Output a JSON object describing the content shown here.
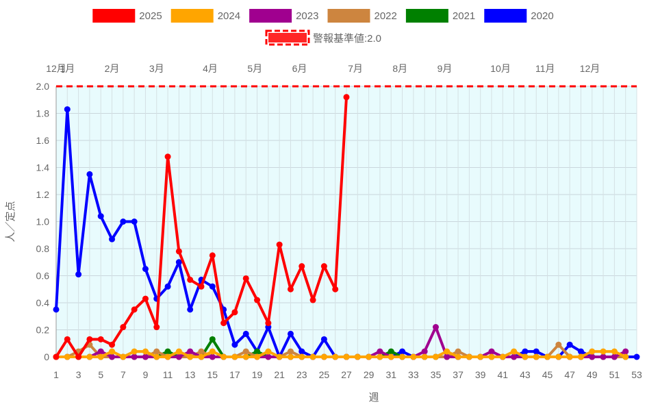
{
  "chart_data": {
    "type": "line",
    "xlabel": "週",
    "ylabel": "人／定点",
    "ylim": [
      0,
      2.0
    ],
    "yticks": [
      "0",
      "0.2",
      "0.4",
      "0.6",
      "0.8",
      "1.0",
      "1.2",
      "1.4",
      "1.6",
      "1.8",
      "2.0"
    ],
    "xrange": [
      1,
      53
    ],
    "xticks": [
      "1",
      "3",
      "5",
      "7",
      "9",
      "11",
      "13",
      "15",
      "17",
      "19",
      "21",
      "23",
      "25",
      "27",
      "29",
      "31",
      "33",
      "35",
      "37",
      "39",
      "41",
      "43",
      "45",
      "47",
      "49",
      "51",
      "53"
    ],
    "months": [
      {
        "label": "12月",
        "week": 1
      },
      {
        "label": "1月",
        "week": 2
      },
      {
        "label": "2月",
        "week": 6
      },
      {
        "label": "3月",
        "week": 10
      },
      {
        "label": "4月",
        "week": 14.8
      },
      {
        "label": "5月",
        "week": 18.8
      },
      {
        "label": "6月",
        "week": 22.8
      },
      {
        "label": "7月",
        "week": 27.8
      },
      {
        "label": "8月",
        "week": 31.8
      },
      {
        "label": "9月",
        "week": 35.8
      },
      {
        "label": "10月",
        "week": 40.8
      },
      {
        "label": "11月",
        "week": 44.8
      },
      {
        "label": "12月",
        "week": 48.8
      }
    ],
    "threshold": {
      "name": "警報基準値:2.0",
      "value": 2.0,
      "color": "#ff0000"
    },
    "grid": true,
    "plot_background": "#e8fbfd",
    "legend_position": "top",
    "series": [
      {
        "name": "2020",
        "color": "#0000ff",
        "x": [
          1,
          2,
          3,
          4,
          5,
          6,
          7,
          8,
          9,
          10,
          11,
          12,
          13,
          14,
          15,
          16,
          17,
          18,
          19,
          20,
          21,
          22,
          23,
          24,
          25,
          26,
          27,
          28,
          29,
          30,
          31,
          32,
          33,
          34,
          35,
          36,
          37,
          38,
          39,
          40,
          41,
          42,
          43,
          44,
          45,
          46,
          47,
          48,
          49,
          50,
          51,
          52,
          53
        ],
        "values": [
          0.35,
          1.83,
          0.61,
          1.35,
          1.04,
          0.87,
          1.0,
          1.0,
          0.65,
          0.43,
          0.52,
          0.7,
          0.35,
          0.57,
          0.52,
          0.35,
          0.09,
          0.17,
          0.04,
          0.22,
          0.0,
          0.17,
          0.04,
          0.0,
          0.13,
          0.0,
          0.0,
          0.0,
          0.0,
          0.0,
          0.0,
          0.04,
          0.0,
          0.0,
          0.0,
          0.0,
          0.0,
          0.0,
          0.0,
          0.0,
          0.0,
          0.0,
          0.04,
          0.04,
          0.0,
          0.0,
          0.09,
          0.04,
          0.0,
          0.0,
          0.0,
          0.0,
          0.0
        ]
      },
      {
        "name": "2021",
        "color": "#008000",
        "x": [
          1,
          2,
          3,
          4,
          5,
          6,
          7,
          8,
          9,
          10,
          11,
          12,
          13,
          14,
          15,
          16,
          17,
          18,
          19,
          20,
          21,
          22,
          23,
          24,
          25,
          26,
          27,
          28,
          29,
          30,
          31,
          32,
          33,
          34,
          35,
          36,
          37,
          38,
          39,
          40,
          41,
          42,
          43,
          44,
          45,
          46,
          47,
          48,
          49,
          50,
          51,
          52
        ],
        "values": [
          0.0,
          0.0,
          0.0,
          0.0,
          0.0,
          0.0,
          0.0,
          0.0,
          0.0,
          0.0,
          0.04,
          0.0,
          0.0,
          0.0,
          0.13,
          0.0,
          0.0,
          0.0,
          0.04,
          0.0,
          0.0,
          0.0,
          0.0,
          0.0,
          0.0,
          0.0,
          0.0,
          0.0,
          0.0,
          0.0,
          0.04,
          0.0,
          0.0,
          0.0,
          0.0,
          0.0,
          0.0,
          0.0,
          0.0,
          0.0,
          0.0,
          0.0,
          0.0,
          0.0,
          0.0,
          0.0,
          0.0,
          0.0,
          0.0,
          0.0,
          0.0,
          0.0
        ]
      },
      {
        "name": "2022",
        "color": "#cd853f",
        "x": [
          1,
          2,
          3,
          4,
          5,
          6,
          7,
          8,
          9,
          10,
          11,
          12,
          13,
          14,
          15,
          16,
          17,
          18,
          19,
          20,
          21,
          22,
          23,
          24,
          25,
          26,
          27,
          28,
          29,
          30,
          31,
          32,
          33,
          34,
          35,
          36,
          37,
          38,
          39,
          40,
          41,
          42,
          43,
          44,
          45,
          46,
          47,
          48,
          49,
          50,
          51,
          52
        ],
        "values": [
          0.0,
          0.0,
          0.04,
          0.09,
          0.0,
          0.0,
          0.0,
          0.0,
          0.0,
          0.04,
          0.0,
          0.0,
          0.0,
          0.04,
          0.0,
          0.0,
          0.0,
          0.04,
          0.0,
          0.0,
          0.0,
          0.04,
          0.0,
          0.0,
          0.0,
          0.0,
          0.0,
          0.0,
          0.0,
          0.0,
          0.0,
          0.0,
          0.0,
          0.0,
          0.0,
          0.0,
          0.04,
          0.0,
          0.0,
          0.0,
          0.0,
          0.0,
          0.0,
          0.0,
          0.0,
          0.09,
          0.0,
          0.0,
          0.0,
          0.0,
          0.0,
          0.0
        ]
      },
      {
        "name": "2023",
        "color": "#a0008f",
        "x": [
          1,
          2,
          3,
          4,
          5,
          6,
          7,
          8,
          9,
          10,
          11,
          12,
          13,
          14,
          15,
          16,
          17,
          18,
          19,
          20,
          21,
          22,
          23,
          24,
          25,
          26,
          27,
          28,
          29,
          30,
          31,
          32,
          33,
          34,
          35,
          36,
          37,
          38,
          39,
          40,
          41,
          42,
          43,
          44,
          45,
          46,
          47,
          48,
          49,
          50,
          51,
          52
        ],
        "values": [
          0.0,
          0.0,
          0.0,
          0.0,
          0.04,
          0.0,
          0.0,
          0.0,
          0.0,
          0.0,
          0.0,
          0.0,
          0.04,
          0.0,
          0.0,
          0.0,
          0.0,
          0.0,
          0.0,
          0.0,
          0.0,
          0.0,
          0.0,
          0.0,
          0.0,
          0.0,
          0.0,
          0.0,
          0.0,
          0.04,
          0.0,
          0.0,
          0.0,
          0.04,
          0.22,
          0.0,
          0.0,
          0.0,
          0.0,
          0.04,
          0.0,
          0.0,
          0.0,
          0.0,
          0.0,
          0.0,
          0.0,
          0.0,
          0.0,
          0.0,
          0.0,
          0.04
        ]
      },
      {
        "name": "2024",
        "color": "#ffa500",
        "x": [
          1,
          2,
          3,
          4,
          5,
          6,
          7,
          8,
          9,
          10,
          11,
          12,
          13,
          14,
          15,
          16,
          17,
          18,
          19,
          20,
          21,
          22,
          23,
          24,
          25,
          26,
          27,
          28,
          29,
          30,
          31,
          32,
          33,
          34,
          35,
          36,
          37,
          38,
          39,
          40,
          41,
          42,
          43,
          44,
          45,
          46,
          47,
          48,
          49,
          50,
          51,
          52
        ],
        "values": [
          0.0,
          0.0,
          0.0,
          0.0,
          0.0,
          0.04,
          0.0,
          0.04,
          0.04,
          0.0,
          0.0,
          0.04,
          0.0,
          0.0,
          0.04,
          0.0,
          0.0,
          0.0,
          0.0,
          0.04,
          0.0,
          0.0,
          0.0,
          0.0,
          0.0,
          0.0,
          0.0,
          0.0,
          0.0,
          0.0,
          0.0,
          0.0,
          0.0,
          0.0,
          0.0,
          0.04,
          0.0,
          0.0,
          0.0,
          0.0,
          0.0,
          0.04,
          0.0,
          0.0,
          0.0,
          0.0,
          0.0,
          0.0,
          0.04,
          0.04,
          0.04,
          0.0
        ]
      },
      {
        "name": "2025",
        "color": "#ff0000",
        "x": [
          1,
          2,
          3,
          4,
          5,
          6,
          7,
          8,
          9,
          10,
          11,
          12,
          13,
          14,
          15,
          16,
          17,
          18,
          19,
          20,
          21,
          22,
          23,
          24,
          25,
          26,
          27
        ],
        "values": [
          0.0,
          0.13,
          0.0,
          0.13,
          0.13,
          0.09,
          0.22,
          0.35,
          0.43,
          0.22,
          1.48,
          0.78,
          0.57,
          0.52,
          0.75,
          0.25,
          0.33,
          0.58,
          0.42,
          0.25,
          0.83,
          0.5,
          0.67,
          0.42,
          0.67,
          0.5,
          1.92
        ]
      }
    ]
  }
}
